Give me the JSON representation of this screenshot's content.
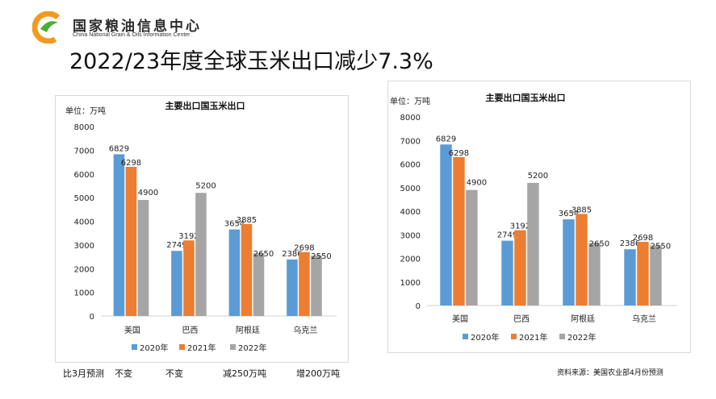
{
  "header": {
    "logo_cn": "国家粮油信息中心",
    "logo_en": "China National Grain & Oils Information Center",
    "title": "2022/23年度全球玉米出口减少7.3%"
  },
  "colors": {
    "series_2020": "#5b9bd5",
    "series_2021": "#ed7d31",
    "series_2022": "#a5a5a5",
    "logo_orange": "#f39a1e",
    "logo_green": "#4caf32"
  },
  "chart_data": [
    {
      "type": "bar",
      "title": "主要出口国玉米出口",
      "unit_label": "单位：万吨",
      "categories": [
        "美国",
        "巴西",
        "阿根廷",
        "乌克兰"
      ],
      "series": [
        {
          "name": "2020年",
          "values": [
            6829,
            2749,
            3654,
            2386
          ]
        },
        {
          "name": "2021年",
          "values": [
            6298,
            3192,
            3885,
            2698
          ]
        },
        {
          "name": "2022年",
          "values": [
            4900,
            5200,
            2650,
            2550
          ]
        }
      ],
      "ylim": [
        0,
        8000
      ],
      "yticks": [
        "0",
        "1000",
        "2000",
        "3000",
        "4000",
        "5000",
        "6000",
        "7000",
        "8000"
      ],
      "legend": "bottom",
      "grid": false
    },
    {
      "type": "bar",
      "title": "主要出口国玉米出口",
      "unit_label": "单位：万吨",
      "categories": [
        "美国",
        "巴西",
        "阿根廷",
        "乌克兰"
      ],
      "series": [
        {
          "name": "2020年",
          "values": [
            6829,
            2749,
            3654,
            2386
          ]
        },
        {
          "name": "2021年",
          "values": [
            6298,
            3192,
            3885,
            2698
          ]
        },
        {
          "name": "2022年",
          "values": [
            4900,
            5200,
            2650,
            2550
          ]
        }
      ],
      "ylim": [
        0,
        8000
      ],
      "yticks": [
        "0",
        "1000",
        "2000",
        "3000",
        "4000",
        "5000",
        "6000",
        "7000",
        "8000"
      ],
      "legend": "bottom",
      "grid": false
    }
  ],
  "notes": {
    "prefix": "比3月预测",
    "us": "不变",
    "brazil": "不变",
    "argentina": "减250万吨",
    "ukraine": "增200万吨",
    "source": "资料来源：美国农业部4月份预测"
  }
}
